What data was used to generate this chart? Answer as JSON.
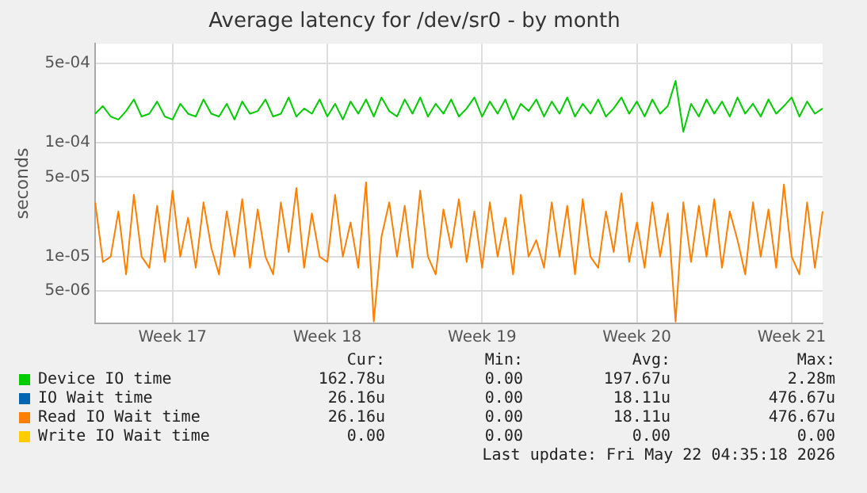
{
  "chart_data": {
    "type": "line",
    "title": "Average latency for /dev/sr0 - by month",
    "ylabel": "seconds",
    "categories": [
      null,
      null,
      null,
      null,
      null,
      null,
      null,
      null,
      null,
      null,
      "Week 17",
      null,
      null,
      null,
      null,
      null,
      null,
      null,
      null,
      null,
      null,
      null,
      null,
      null,
      null,
      null,
      null,
      null,
      null,
      null,
      "Week 18",
      null,
      null,
      null,
      null,
      null,
      null,
      null,
      null,
      null,
      null,
      null,
      null,
      null,
      null,
      null,
      null,
      null,
      null,
      null,
      "Week 19",
      null,
      null,
      null,
      null,
      null,
      null,
      null,
      null,
      null,
      null,
      null,
      null,
      null,
      null,
      null,
      null,
      null,
      null,
      null,
      "Week 20",
      null,
      null,
      null,
      null,
      null,
      null,
      null,
      null,
      null,
      null,
      null,
      null,
      null,
      null,
      null,
      null,
      null,
      null,
      null,
      "Week 21",
      null,
      null,
      null,
      null
    ],
    "series": [
      {
        "name": "Device IO time",
        "color": "#00cc00",
        "values": [
          0.00018,
          0.00021,
          0.00017,
          0.00016,
          0.00019,
          0.00024,
          0.00017,
          0.00018,
          0.00023,
          0.00017,
          0.00016,
          0.00022,
          0.00018,
          0.00017,
          0.00024,
          0.00018,
          0.00017,
          0.00022,
          0.00016,
          0.00023,
          0.00018,
          0.00019,
          0.00024,
          0.00017,
          0.00018,
          0.00025,
          0.00017,
          0.0002,
          0.00018,
          0.00024,
          0.00017,
          0.00022,
          0.00016,
          0.00023,
          0.00018,
          0.00024,
          0.00017,
          0.00025,
          0.00019,
          0.00017,
          0.00024,
          0.00018,
          0.00025,
          0.00017,
          0.00022,
          0.00018,
          0.00024,
          0.00017,
          0.0002,
          0.00025,
          0.00017,
          0.00023,
          0.00018,
          0.00024,
          0.00016,
          0.00022,
          0.00019,
          0.00024,
          0.00017,
          0.00023,
          0.00018,
          0.00025,
          0.00017,
          0.00022,
          0.00018,
          0.00024,
          0.00017,
          0.0002,
          0.00025,
          0.00018,
          0.00023,
          0.00017,
          0.00024,
          0.00018,
          0.00021,
          0.00035,
          0.000125,
          0.00022,
          0.00017,
          0.00024,
          0.00018,
          0.00023,
          0.00017,
          0.00025,
          0.00018,
          0.00022,
          0.00017,
          0.00024,
          0.00018,
          0.00021,
          0.00025,
          0.00017,
          0.00023,
          0.00018,
          0.0002
        ]
      },
      {
        "name": "IO Wait time",
        "color": "#0066b3",
        "values": [
          null,
          null,
          null,
          null,
          null,
          null,
          null,
          null,
          null,
          null,
          null,
          null,
          null,
          null,
          null,
          null,
          null,
          null,
          null,
          null,
          null,
          null,
          null,
          null,
          null,
          null,
          null,
          null,
          null,
          null,
          null,
          null,
          null,
          null,
          null,
          null,
          null,
          null,
          null,
          null,
          null,
          null,
          null,
          null,
          null,
          null,
          null,
          null,
          null,
          null,
          null,
          null,
          null,
          null,
          null,
          null,
          null,
          null,
          null,
          null,
          null,
          null,
          null,
          null,
          null,
          null,
          null,
          null,
          null,
          null,
          null,
          null,
          null,
          null,
          null,
          null,
          null,
          null,
          null,
          null,
          null,
          null,
          null,
          null,
          null,
          null,
          null,
          null,
          null,
          null,
          null,
          null,
          null,
          null,
          null
        ]
      },
      {
        "name": "Read IO Wait time",
        "color": "#ff8000",
        "values": [
          3e-05,
          9e-06,
          1e-05,
          2.5e-05,
          7e-06,
          3.5e-05,
          1e-05,
          8e-06,
          2.8e-05,
          9e-06,
          3.8e-05,
          1e-05,
          2.2e-05,
          8e-06,
          3e-05,
          1.2e-05,
          7e-06,
          2.5e-05,
          1e-05,
          3.2e-05,
          8e-06,
          2.6e-05,
          1e-05,
          7e-06,
          3e-05,
          1.1e-05,
          4e-05,
          8e-06,
          2.4e-05,
          1e-05,
          9e-06,
          3.5e-05,
          1e-05,
          2e-05,
          8e-06,
          4.5e-05,
          2.7e-06,
          1.5e-05,
          3e-05,
          1e-05,
          2.8e-05,
          8e-06,
          3.8e-05,
          1e-05,
          7e-06,
          2.6e-05,
          1.2e-05,
          3.2e-05,
          9e-06,
          2.5e-05,
          8e-06,
          3e-05,
          1e-05,
          2.2e-05,
          7e-06,
          3.5e-05,
          1e-05,
          1.4e-05,
          8e-06,
          3e-05,
          1e-05,
          2.8e-05,
          7e-06,
          3.2e-05,
          1e-05,
          8e-06,
          2.5e-05,
          1.1e-05,
          3.6e-05,
          9e-06,
          2e-05,
          8e-06,
          3e-05,
          1e-05,
          2.4e-05,
          2.7e-06,
          3e-05,
          9e-06,
          2.8e-05,
          1e-05,
          3.2e-05,
          8e-06,
          2.5e-05,
          1.4e-05,
          7e-06,
          3e-05,
          1e-05,
          2.6e-05,
          8e-06,
          4.3e-05,
          1e-05,
          7e-06,
          3e-05,
          8e-06,
          2.5e-05
        ]
      },
      {
        "name": "Write IO Wait time",
        "color": "#ffcc00",
        "values": [
          null,
          null,
          null,
          null,
          null,
          null,
          null,
          null,
          null,
          null,
          null,
          null,
          null,
          null,
          null,
          null,
          null,
          null,
          null,
          null,
          null,
          null,
          null,
          null,
          null,
          null,
          null,
          null,
          null,
          null,
          null,
          null,
          null,
          null,
          null,
          null,
          null,
          null,
          null,
          null,
          null,
          null,
          null,
          null,
          null,
          null,
          null,
          null,
          null,
          null,
          null,
          null,
          null,
          null,
          null,
          null,
          null,
          null,
          null,
          null,
          null,
          null,
          null,
          null,
          null,
          null,
          null,
          null,
          null,
          null,
          null,
          null,
          null,
          null,
          null,
          null,
          null,
          null,
          null,
          null,
          null,
          null,
          null,
          null,
          null,
          null,
          null,
          null,
          null,
          null,
          null,
          null,
          null,
          null,
          null
        ]
      }
    ],
    "ylim": [
      2.6e-06,
      0.00074
    ],
    "yticks": [
      {
        "value": 5e-06,
        "label": "5e-06"
      },
      {
        "value": 1e-05,
        "label": "1e-05"
      },
      {
        "value": 5e-05,
        "label": "5e-05"
      },
      {
        "value": 0.0001,
        "label": "1e-04"
      },
      {
        "value": 0.0005,
        "label": "5e-04"
      }
    ],
    "log": true,
    "grid": true,
    "legend": "bottom",
    "marker": "none",
    "line_style": "solid",
    "annotations": [
      "Cur:",
      "Min:",
      "Avg:",
      "Max:",
      "162.78u",
      "0.00",
      "197.67u",
      "2.28m",
      "26.16u",
      "0.00",
      "18.11u",
      "476.67u",
      "26.16u",
      "0.00",
      "18.11u",
      "476.67u",
      "0.00",
      "0.00",
      "0.00",
      "0.00",
      "Last update: Fri May 22 04:35:18 2026"
    ]
  }
}
